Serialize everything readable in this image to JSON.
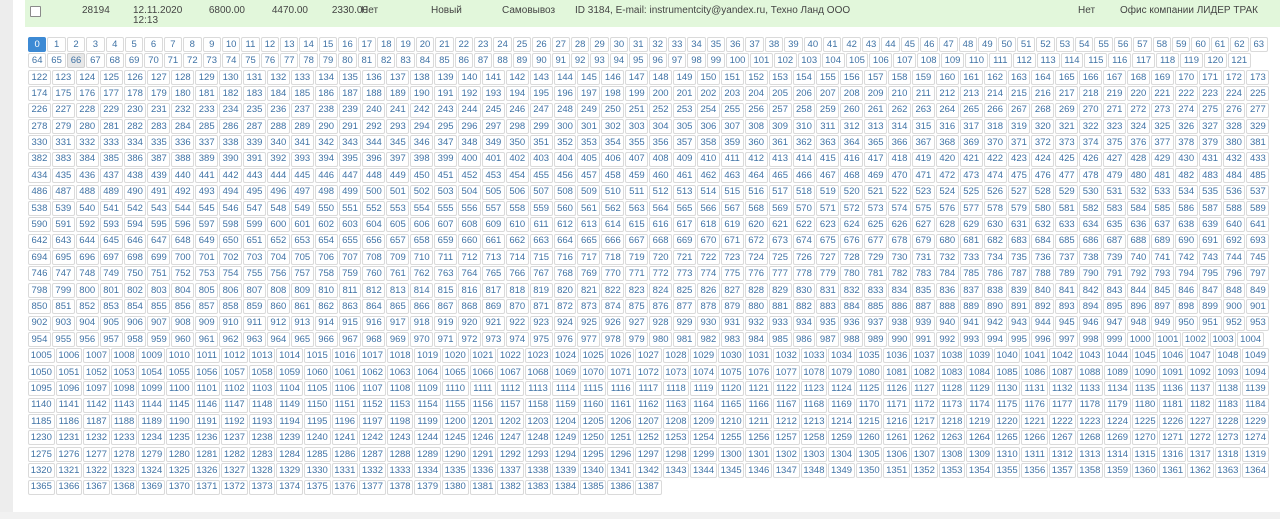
{
  "order_row": {
    "checkbox_checked": false,
    "order_id": "28194",
    "date": "12.11.2020",
    "time": "12:13",
    "total": "6800.00",
    "paid": "4470.00",
    "remainder": "2330.00",
    "flag1": "Нет",
    "status": "Новый",
    "delivery": "Самовывоз",
    "customer": "ID 3184, E-mail: instrumentcity@yandex.ru, Техно Ланд ООО",
    "flag2": "Нет",
    "office": "Офис компании ЛИДЕР ТРАК"
  },
  "pagination": {
    "first_page": 0,
    "last_page": 1387,
    "active_page": 0,
    "hover_page": 66
  },
  "colors": {
    "row_green": "#e2f7db",
    "active_blue": "#3d8ad4",
    "link_blue": "#3f72a5",
    "border_gray": "#dadada"
  }
}
